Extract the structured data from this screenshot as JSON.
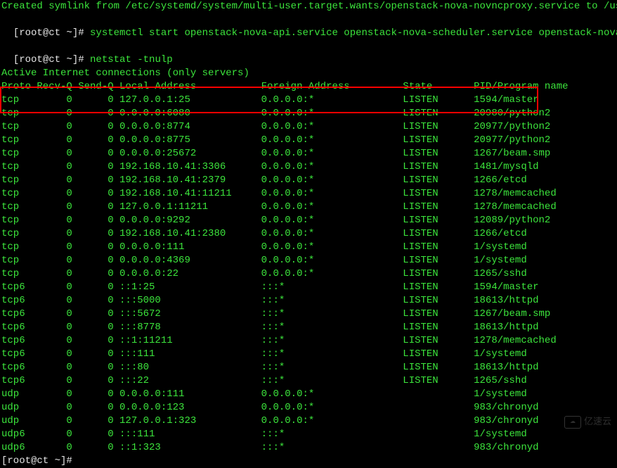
{
  "terminal": {
    "top_line_fragment": "Created symlink from /etc/systemd/system/multi-user.target.wants/openstack-nova-novncproxy.service to /usr/lib",
    "prompt1": "[root@ct ~]# ",
    "cmd1": "systemctl start openstack-nova-api.service openstack-nova-scheduler.service openstack-nova-conduc",
    "prompt2": "[root@ct ~]# ",
    "cmd2": "netstat -tnulp",
    "active_line": "Active Internet connections (only servers)",
    "header": {
      "proto": "Proto",
      "recvq": "Recv-Q",
      "sendq": "Send-Q",
      "local": "Local Address",
      "foreign": "Foreign Address",
      "state": "State",
      "pid": "PID/Program name"
    },
    "rows": [
      {
        "proto": "tcp",
        "recvq": "0",
        "sendq": "0",
        "local": "127.0.0.1:25",
        "foreign": "0.0.0.0:*",
        "state": "LISTEN",
        "pid": "1594/master"
      },
      {
        "proto": "tcp",
        "recvq": "0",
        "sendq": "0",
        "local": "0.0.0.0:6080",
        "foreign": "0.0.0.0:*",
        "state": "LISTEN",
        "pid": "20980/python2"
      },
      {
        "proto": "tcp",
        "recvq": "0",
        "sendq": "0",
        "local": "0.0.0.0:8774",
        "foreign": "0.0.0.0:*",
        "state": "LISTEN",
        "pid": "20977/python2"
      },
      {
        "proto": "tcp",
        "recvq": "0",
        "sendq": "0",
        "local": "0.0.0.0:8775",
        "foreign": "0.0.0.0:*",
        "state": "LISTEN",
        "pid": "20977/python2"
      },
      {
        "proto": "tcp",
        "recvq": "0",
        "sendq": "0",
        "local": "0.0.0.0:25672",
        "foreign": "0.0.0.0:*",
        "state": "LISTEN",
        "pid": "1267/beam.smp"
      },
      {
        "proto": "tcp",
        "recvq": "0",
        "sendq": "0",
        "local": "192.168.10.41:3306",
        "foreign": "0.0.0.0:*",
        "state": "LISTEN",
        "pid": "1481/mysqld"
      },
      {
        "proto": "tcp",
        "recvq": "0",
        "sendq": "0",
        "local": "192.168.10.41:2379",
        "foreign": "0.0.0.0:*",
        "state": "LISTEN",
        "pid": "1266/etcd"
      },
      {
        "proto": "tcp",
        "recvq": "0",
        "sendq": "0",
        "local": "192.168.10.41:11211",
        "foreign": "0.0.0.0:*",
        "state": "LISTEN",
        "pid": "1278/memcached"
      },
      {
        "proto": "tcp",
        "recvq": "0",
        "sendq": "0",
        "local": "127.0.0.1:11211",
        "foreign": "0.0.0.0:*",
        "state": "LISTEN",
        "pid": "1278/memcached"
      },
      {
        "proto": "tcp",
        "recvq": "0",
        "sendq": "0",
        "local": "0.0.0.0:9292",
        "foreign": "0.0.0.0:*",
        "state": "LISTEN",
        "pid": "12089/python2"
      },
      {
        "proto": "tcp",
        "recvq": "0",
        "sendq": "0",
        "local": "192.168.10.41:2380",
        "foreign": "0.0.0.0:*",
        "state": "LISTEN",
        "pid": "1266/etcd"
      },
      {
        "proto": "tcp",
        "recvq": "0",
        "sendq": "0",
        "local": "0.0.0.0:111",
        "foreign": "0.0.0.0:*",
        "state": "LISTEN",
        "pid": "1/systemd"
      },
      {
        "proto": "tcp",
        "recvq": "0",
        "sendq": "0",
        "local": "0.0.0.0:4369",
        "foreign": "0.0.0.0:*",
        "state": "LISTEN",
        "pid": "1/systemd"
      },
      {
        "proto": "tcp",
        "recvq": "0",
        "sendq": "0",
        "local": "0.0.0.0:22",
        "foreign": "0.0.0.0:*",
        "state": "LISTEN",
        "pid": "1265/sshd"
      },
      {
        "proto": "tcp6",
        "recvq": "0",
        "sendq": "0",
        "local": "::1:25",
        "foreign": ":::*",
        "state": "LISTEN",
        "pid": "1594/master"
      },
      {
        "proto": "tcp6",
        "recvq": "0",
        "sendq": "0",
        "local": ":::5000",
        "foreign": ":::*",
        "state": "LISTEN",
        "pid": "18613/httpd"
      },
      {
        "proto": "tcp6",
        "recvq": "0",
        "sendq": "0",
        "local": ":::5672",
        "foreign": ":::*",
        "state": "LISTEN",
        "pid": "1267/beam.smp"
      },
      {
        "proto": "tcp6",
        "recvq": "0",
        "sendq": "0",
        "local": ":::8778",
        "foreign": ":::*",
        "state": "LISTEN",
        "pid": "18613/httpd"
      },
      {
        "proto": "tcp6",
        "recvq": "0",
        "sendq": "0",
        "local": "::1:11211",
        "foreign": ":::*",
        "state": "LISTEN",
        "pid": "1278/memcached"
      },
      {
        "proto": "tcp6",
        "recvq": "0",
        "sendq": "0",
        "local": ":::111",
        "foreign": ":::*",
        "state": "LISTEN",
        "pid": "1/systemd"
      },
      {
        "proto": "tcp6",
        "recvq": "0",
        "sendq": "0",
        "local": ":::80",
        "foreign": ":::*",
        "state": "LISTEN",
        "pid": "18613/httpd"
      },
      {
        "proto": "tcp6",
        "recvq": "0",
        "sendq": "0",
        "local": ":::22",
        "foreign": ":::*",
        "state": "LISTEN",
        "pid": "1265/sshd"
      },
      {
        "proto": "udp",
        "recvq": "0",
        "sendq": "0",
        "local": "0.0.0.0:111",
        "foreign": "0.0.0.0:*",
        "state": "",
        "pid": "1/systemd"
      },
      {
        "proto": "udp",
        "recvq": "0",
        "sendq": "0",
        "local": "0.0.0.0:123",
        "foreign": "0.0.0.0:*",
        "state": "",
        "pid": "983/chronyd"
      },
      {
        "proto": "udp",
        "recvq": "0",
        "sendq": "0",
        "local": "127.0.0.1:323",
        "foreign": "0.0.0.0:*",
        "state": "",
        "pid": "983/chronyd"
      },
      {
        "proto": "udp6",
        "recvq": "0",
        "sendq": "0",
        "local": ":::111",
        "foreign": ":::*",
        "state": "",
        "pid": "1/systemd"
      },
      {
        "proto": "udp6",
        "recvq": "0",
        "sendq": "0",
        "local": "::1:323",
        "foreign": ":::*",
        "state": "",
        "pid": "983/chronyd"
      }
    ],
    "prompt3": "[root@ct ~]#",
    "watermark": "亿速云",
    "colors": {
      "bg": "#000000",
      "green": "#3ce53c",
      "white": "#e5e5e5",
      "highlight_border": "#ff0000"
    },
    "col_widths": {
      "proto": 6,
      "recvq": 7,
      "sendq": 7,
      "local": 24,
      "foreign": 24,
      "state": 12,
      "pid": 20
    },
    "highlighted_row_indices": [
      2,
      3
    ]
  }
}
